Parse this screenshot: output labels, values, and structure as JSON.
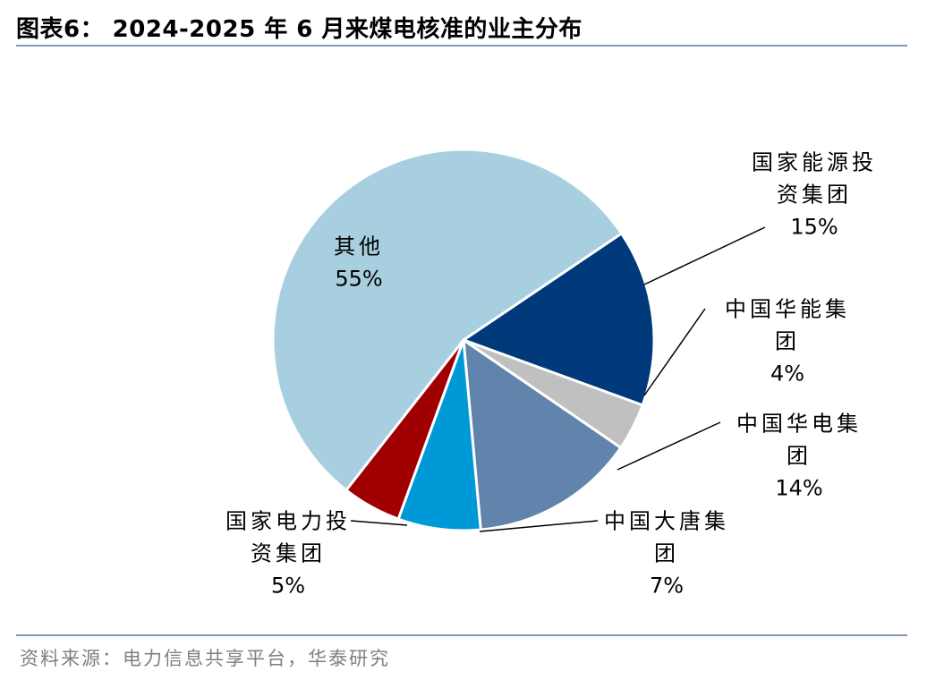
{
  "title": "图表6： 2024-2025 年 6 月来煤电核准的业主分布",
  "source": "资料来源：电力信息共享平台，华泰研究",
  "chart_data": {
    "type": "pie",
    "title": "2024-2025 年 6 月来煤电核准的业主分布",
    "slices": [
      {
        "label": [
          "国家能源投",
          "资集团"
        ],
        "value": 15,
        "pct_text": "15%",
        "color": "#003a7b"
      },
      {
        "label": [
          "中国华能集",
          "团"
        ],
        "value": 4,
        "pct_text": "4%",
        "color": "#c0c0c0"
      },
      {
        "label": [
          "中国华电集",
          "团"
        ],
        "value": 14,
        "pct_text": "14%",
        "color": "#6084ab"
      },
      {
        "label": [
          "中国大唐集",
          "团"
        ],
        "value": 7,
        "pct_text": "7%",
        "color": "#0099d8"
      },
      {
        "label": [
          "国家电力投",
          "资集团"
        ],
        "value": 5,
        "pct_text": "5%",
        "color": "#a10003"
      },
      {
        "label": [
          "其他"
        ],
        "value": 55,
        "pct_text": "55%",
        "color": "#a8cfe0"
      }
    ],
    "legend": "none"
  }
}
